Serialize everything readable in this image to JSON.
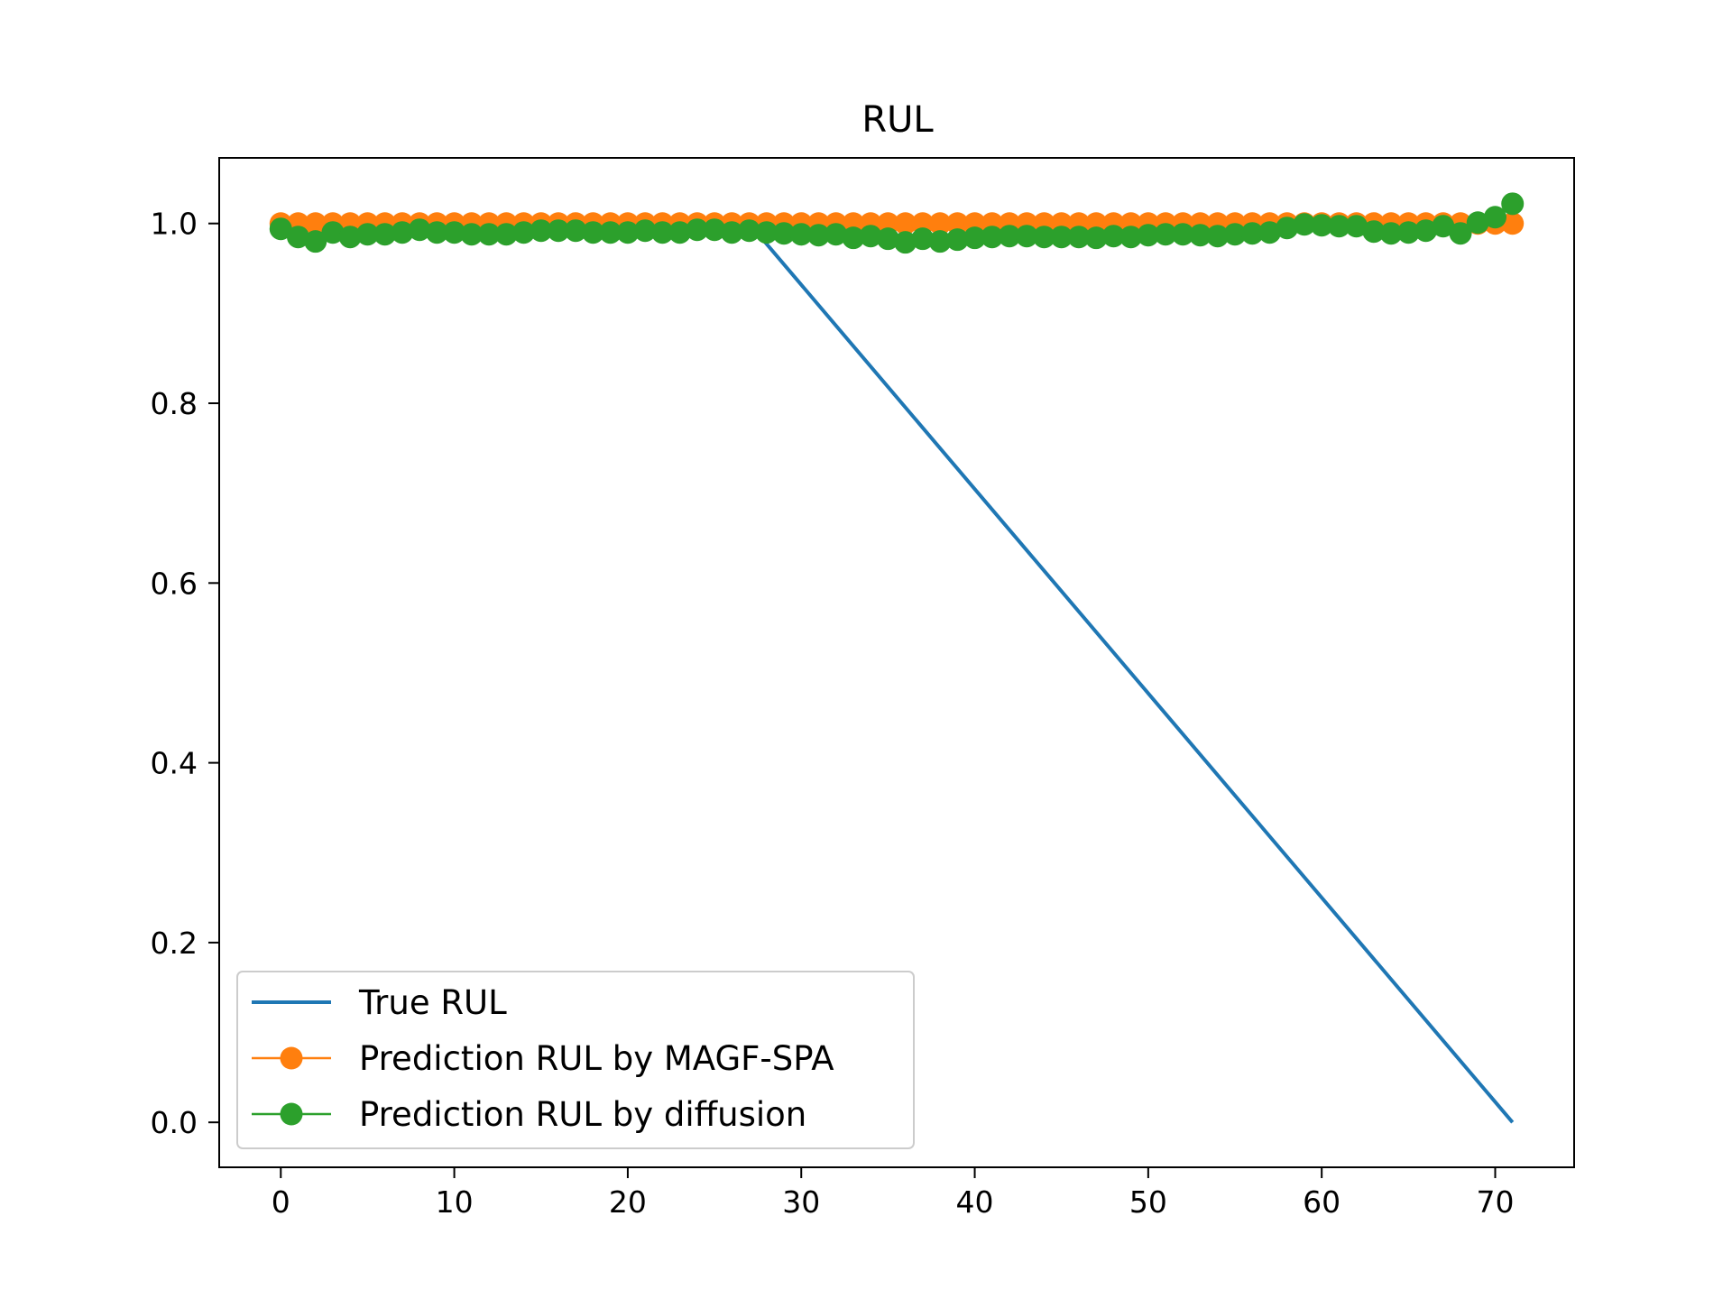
{
  "chart_data": {
    "type": "line",
    "title": "RUL",
    "xlabel": "",
    "ylabel": "",
    "xlim": [
      -3.55,
      74.55
    ],
    "ylim": [
      -0.05,
      1.073
    ],
    "xticks": [
      0,
      10,
      20,
      30,
      40,
      50,
      60,
      70
    ],
    "yticks": [
      0.0,
      0.2,
      0.4,
      0.6,
      0.8,
      1.0
    ],
    "xtick_labels": [
      "0",
      "10",
      "20",
      "30",
      "40",
      "50",
      "60",
      "70"
    ],
    "ytick_labels": [
      "0.0",
      "0.2",
      "0.4",
      "0.6",
      "0.8",
      "1.0"
    ],
    "grid": false,
    "legend_position": "lower-left",
    "series": [
      {
        "name": "True RUL",
        "color": "#1f77b4",
        "marker": "none",
        "x": [
          0,
          27,
          71
        ],
        "y": [
          1.0,
          1.0,
          0.0
        ]
      },
      {
        "name": "Prediction RUL by MAGF-SPA",
        "color": "#ff7f0e",
        "marker": "circle",
        "x": [
          0,
          1,
          2,
          3,
          4,
          5,
          6,
          7,
          8,
          9,
          10,
          11,
          12,
          13,
          14,
          15,
          16,
          17,
          18,
          19,
          20,
          21,
          22,
          23,
          24,
          25,
          26,
          27,
          28,
          29,
          30,
          31,
          32,
          33,
          34,
          35,
          36,
          37,
          38,
          39,
          40,
          41,
          42,
          43,
          44,
          45,
          46,
          47,
          48,
          49,
          50,
          51,
          52,
          53,
          54,
          55,
          56,
          57,
          58,
          59,
          60,
          61,
          62,
          63,
          64,
          65,
          66,
          67,
          68,
          69,
          70,
          71
        ],
        "y": [
          1.0,
          1.0,
          1.0,
          1.0,
          1.0,
          1.0,
          1.0,
          1.0,
          1.0,
          1.0,
          1.0,
          1.0,
          1.0,
          1.0,
          1.0,
          1.0,
          1.0,
          1.0,
          1.0,
          1.0,
          1.0,
          1.0,
          1.0,
          1.0,
          1.0,
          1.0,
          1.0,
          1.0,
          1.0,
          1.0,
          1.0,
          1.0,
          1.0,
          1.0,
          1.0,
          1.0,
          1.0,
          1.0,
          1.0,
          1.0,
          1.0,
          1.0,
          1.0,
          1.0,
          1.0,
          1.0,
          1.0,
          1.0,
          1.0,
          1.0,
          1.0,
          1.0,
          1.0,
          1.0,
          1.0,
          1.0,
          1.0,
          1.0,
          1.0,
          1.0,
          1.0,
          1.0,
          1.0,
          1.0,
          1.0,
          1.0,
          1.0,
          1.0,
          1.0,
          1.0,
          1.0,
          1.0
        ]
      },
      {
        "name": "Prediction RUL by diffusion",
        "color": "#2ca02c",
        "marker": "circle",
        "x": [
          0,
          1,
          2,
          3,
          4,
          5,
          6,
          7,
          8,
          9,
          10,
          11,
          12,
          13,
          14,
          15,
          16,
          17,
          18,
          19,
          20,
          21,
          22,
          23,
          24,
          25,
          26,
          27,
          28,
          29,
          30,
          31,
          32,
          33,
          34,
          35,
          36,
          37,
          38,
          39,
          40,
          41,
          42,
          43,
          44,
          45,
          46,
          47,
          48,
          49,
          50,
          51,
          52,
          53,
          54,
          55,
          56,
          57,
          58,
          59,
          60,
          61,
          62,
          63,
          64,
          65,
          66,
          67,
          68,
          69,
          70,
          71
        ],
        "y": [
          0.994,
          0.985,
          0.98,
          0.99,
          0.985,
          0.988,
          0.988,
          0.99,
          0.993,
          0.99,
          0.99,
          0.988,
          0.988,
          0.988,
          0.99,
          0.992,
          0.992,
          0.992,
          0.99,
          0.99,
          0.99,
          0.992,
          0.99,
          0.99,
          0.993,
          0.993,
          0.99,
          0.992,
          0.99,
          0.989,
          0.988,
          0.987,
          0.988,
          0.984,
          0.986,
          0.983,
          0.979,
          0.983,
          0.98,
          0.982,
          0.984,
          0.985,
          0.986,
          0.986,
          0.985,
          0.985,
          0.985,
          0.984,
          0.986,
          0.985,
          0.987,
          0.988,
          0.988,
          0.987,
          0.986,
          0.988,
          0.989,
          0.99,
          0.995,
          0.999,
          0.998,
          0.997,
          0.997,
          0.991,
          0.989,
          0.99,
          0.992,
          0.997,
          0.989,
          1.001,
          1.007,
          1.022
        ]
      }
    ]
  }
}
